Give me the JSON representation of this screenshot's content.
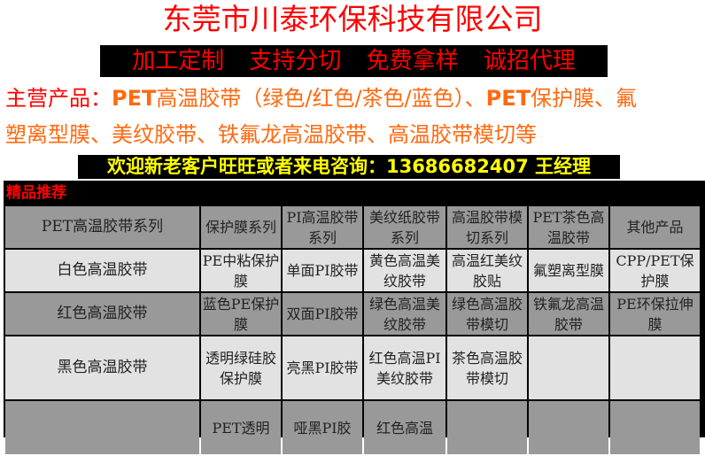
{
  "title": "东莞市川泰环保科技有限公司",
  "services": [
    "加工定制",
    "支持分切",
    "免费拿样",
    "诚招代理"
  ],
  "main_products": {
    "label": "主营产品：",
    "line1_a": "PET",
    "line1_b": "高温胶带（绿色/红色/茶色/蓝色）、",
    "line1_c": "PET",
    "line1_d": "保护膜、氟",
    "line2": "塑离型膜、美纹胶带、铁氟龙高温胶带、高温胶带模切等"
  },
  "contact": {
    "text": "欢迎新老客户旺旺或者来电咨询：",
    "phone": "13686682407",
    "name": " 王经理"
  },
  "table": {
    "caption": "精品推荐",
    "headers": [
      "PET高温胶带系列",
      "保护膜系列",
      "PI高温胶带系列",
      "美纹纸胶带系列",
      "高温胶带模切系列",
      "PET茶色高温胶带",
      "其他产品"
    ],
    "rows": [
      [
        "白色高温胶带",
        "PE中粘保护膜",
        "单面PI胶带",
        "黄色高温美纹胶带",
        "高温红美纹胶贴",
        "氟塑离型膜",
        "CPP/PET保护膜"
      ],
      [
        "红色高温胶带",
        "蓝色PE保护膜",
        "双面PI胶带",
        "绿色高温美纹胶带",
        "绿色高温胶带模切",
        "铁氟龙高温胶带",
        "PE环保拉伸膜"
      ],
      [
        "黑色高温胶带",
        "透明绿硅胶保护膜",
        "亮黑PI胶带",
        "红色高温PI美纹胶带",
        "茶色高温胶带模切",
        "",
        ""
      ],
      [
        "",
        "PET透明",
        "哑黑PI胶",
        "红色高温",
        "",
        "",
        ""
      ]
    ]
  },
  "colors": {
    "title": "#ff0000",
    "orange": "#ff6a10",
    "contact": "#ffff00",
    "header_row": "#999999",
    "light_row": "#e2e2e2"
  }
}
